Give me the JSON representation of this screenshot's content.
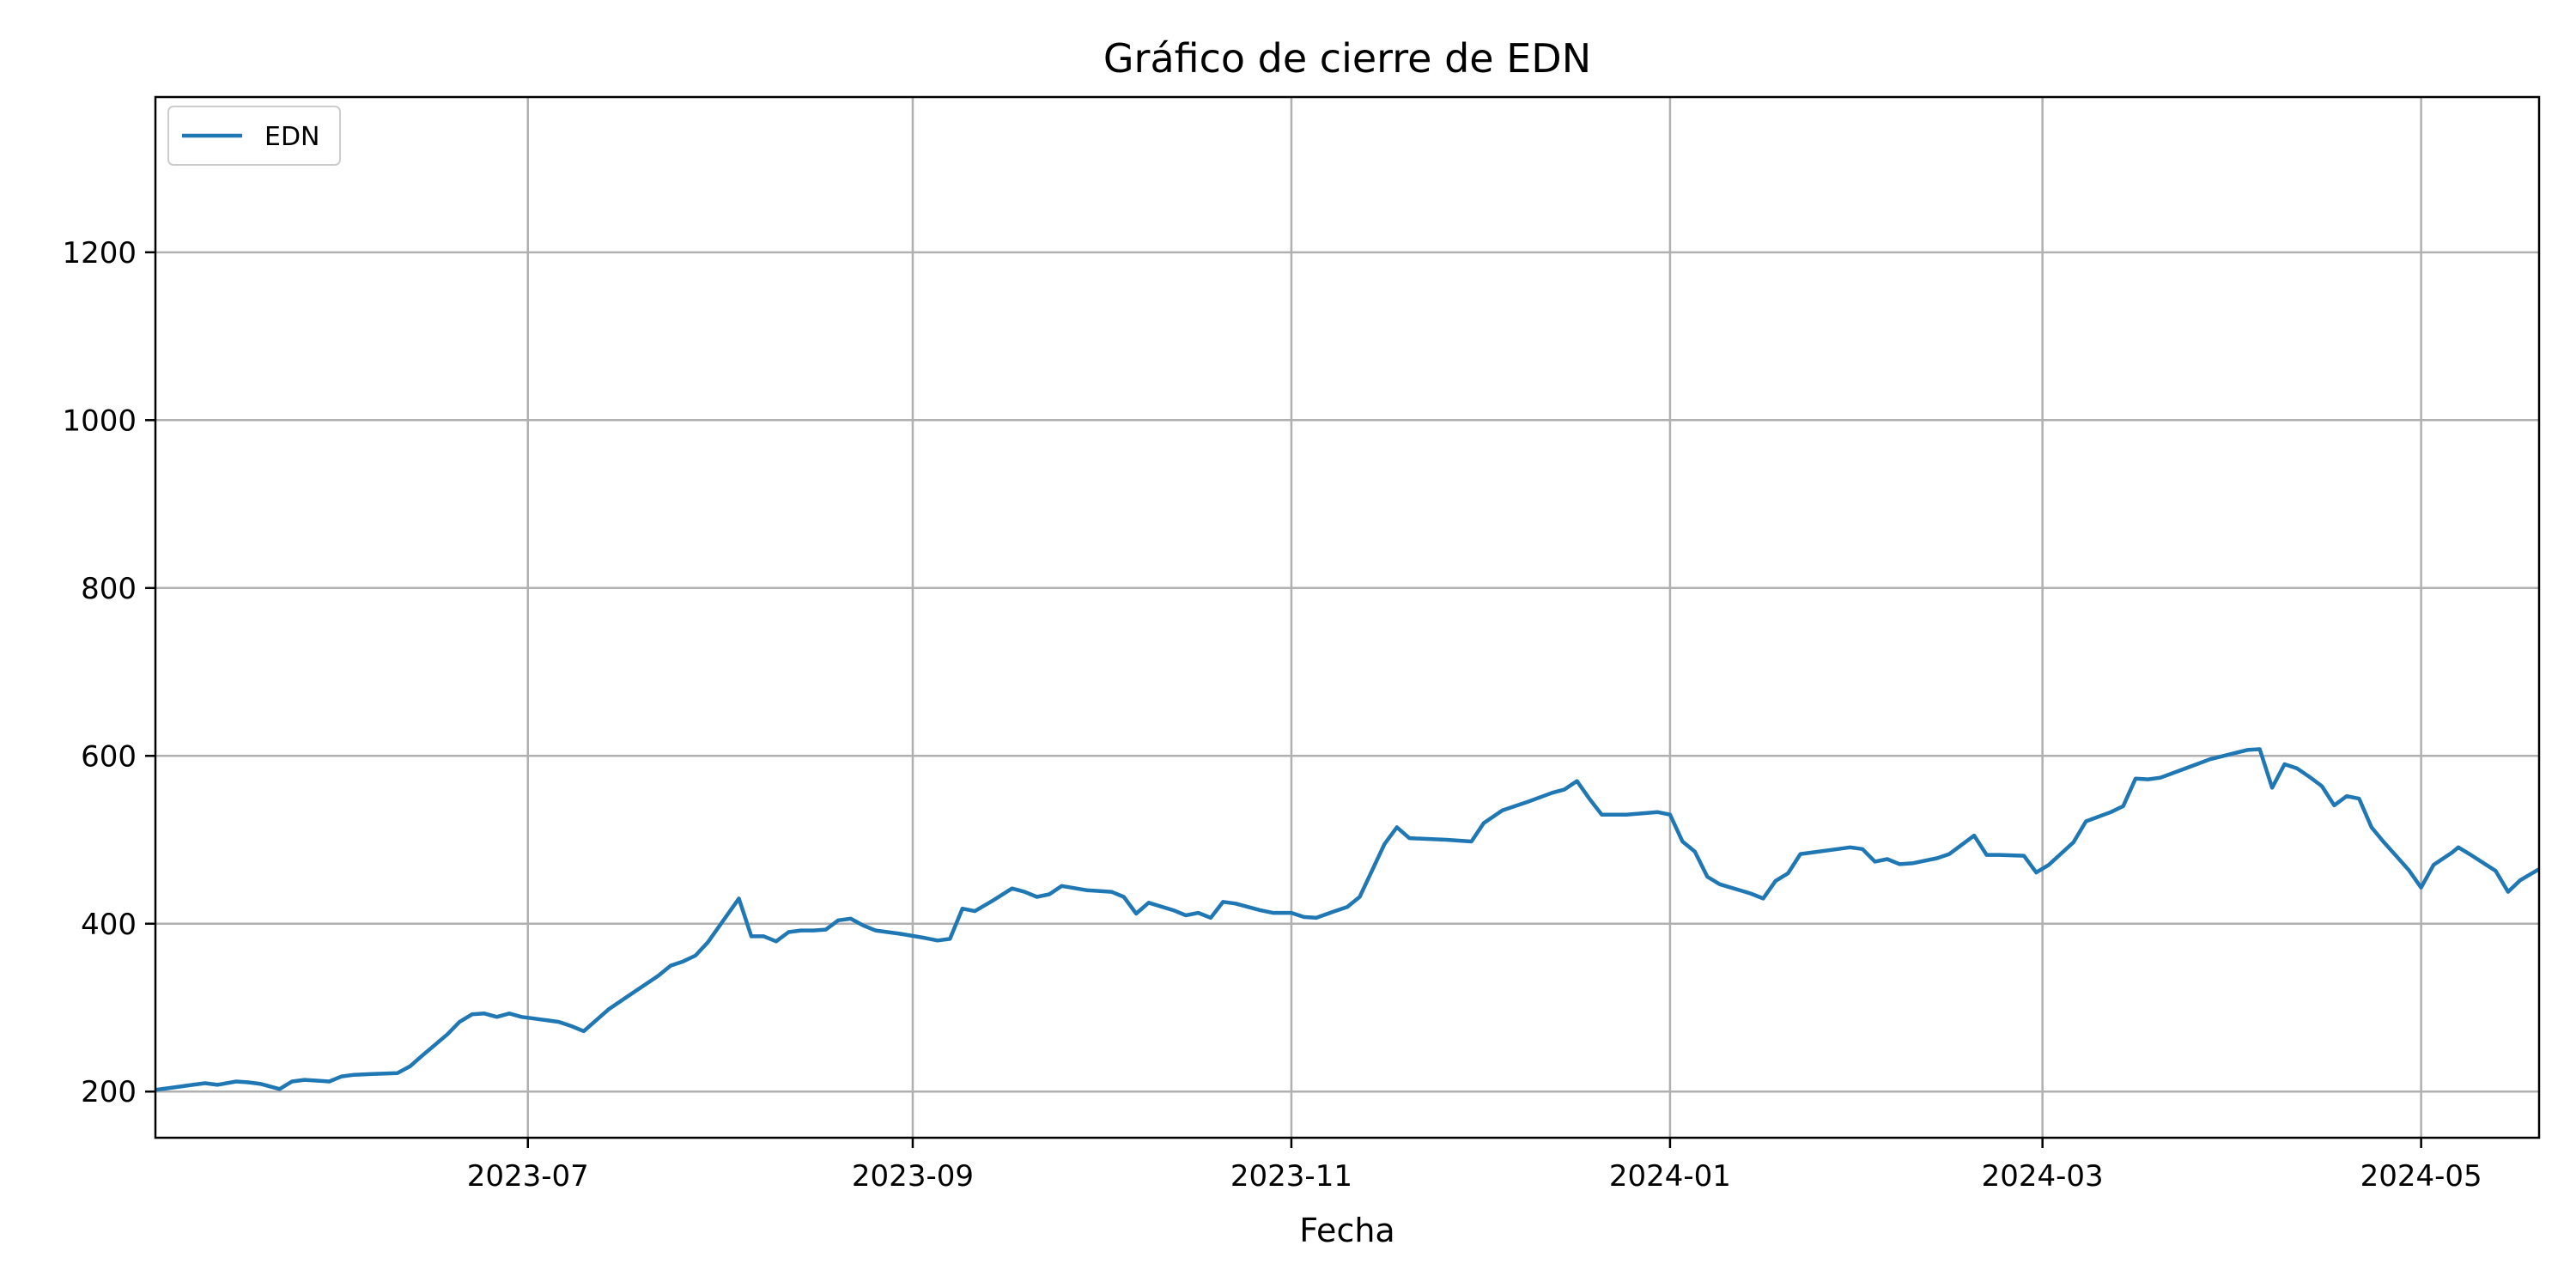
{
  "chart_data": {
    "type": "line",
    "title": "Gráfico de cierre de EDN",
    "xlabel": "Fecha",
    "ylabel": "",
    "x_ticks": [
      "2023-07",
      "2023-09",
      "2023-11",
      "2024-01",
      "2024-03",
      "2024-05"
    ],
    "y_ticks": [
      200,
      400,
      600,
      800,
      1000,
      1200
    ],
    "xlim": [
      "2023-05-02",
      "2024-05-20"
    ],
    "ylim": [
      145,
      1385
    ],
    "grid": true,
    "legend": "top-left",
    "colors": {
      "series": "#1f77b4",
      "grid": "#b0b0b0",
      "axes": "#000000"
    },
    "series": [
      {
        "name": "EDN",
        "points": [
          [
            "2023-05-02",
            202
          ],
          [
            "2023-05-05",
            205
          ],
          [
            "2023-05-08",
            208
          ],
          [
            "2023-05-10",
            210
          ],
          [
            "2023-05-12",
            208
          ],
          [
            "2023-05-15",
            212
          ],
          [
            "2023-05-17",
            211
          ],
          [
            "2023-05-19",
            209
          ],
          [
            "2023-05-22",
            203
          ],
          [
            "2023-05-24",
            212
          ],
          [
            "2023-05-26",
            214
          ],
          [
            "2023-05-28",
            213
          ],
          [
            "2023-05-30",
            212
          ],
          [
            "2023-06-01",
            218
          ],
          [
            "2023-06-03",
            220
          ],
          [
            "2023-06-06",
            221
          ],
          [
            "2023-06-10",
            222
          ],
          [
            "2023-06-12",
            230
          ],
          [
            "2023-06-14",
            243
          ],
          [
            "2023-06-18",
            268
          ],
          [
            "2023-06-20",
            283
          ],
          [
            "2023-06-22",
            292
          ],
          [
            "2023-06-24",
            293
          ],
          [
            "2023-06-26",
            289
          ],
          [
            "2023-06-28",
            293
          ],
          [
            "2023-06-30",
            289
          ],
          [
            "2023-07-02",
            287
          ],
          [
            "2023-07-06",
            283
          ],
          [
            "2023-07-08",
            278
          ],
          [
            "2023-07-10",
            272
          ],
          [
            "2023-07-12",
            285
          ],
          [
            "2023-07-14",
            298
          ],
          [
            "2023-07-18",
            318
          ],
          [
            "2023-07-22",
            338
          ],
          [
            "2023-07-24",
            350
          ],
          [
            "2023-07-26",
            355
          ],
          [
            "2023-07-28",
            362
          ],
          [
            "2023-07-30",
            378
          ],
          [
            "2023-08-04",
            430
          ],
          [
            "2023-08-06",
            385
          ],
          [
            "2023-08-08",
            385
          ],
          [
            "2023-08-10",
            379
          ],
          [
            "2023-08-12",
            390
          ],
          [
            "2023-08-14",
            392
          ],
          [
            "2023-08-16",
            392
          ],
          [
            "2023-08-18",
            393
          ],
          [
            "2023-08-20",
            404
          ],
          [
            "2023-08-22",
            406
          ],
          [
            "2023-08-24",
            398
          ],
          [
            "2023-08-26",
            392
          ],
          [
            "2023-08-30",
            388
          ],
          [
            "2023-09-03",
            383
          ],
          [
            "2023-09-05",
            380
          ],
          [
            "2023-09-07",
            382
          ],
          [
            "2023-09-09",
            418
          ],
          [
            "2023-09-11",
            415
          ],
          [
            "2023-09-14",
            428
          ],
          [
            "2023-09-17",
            442
          ],
          [
            "2023-09-19",
            438
          ],
          [
            "2023-09-21",
            432
          ],
          [
            "2023-09-23",
            435
          ],
          [
            "2023-09-25",
            445
          ],
          [
            "2023-09-29",
            440
          ],
          [
            "2023-10-03",
            438
          ],
          [
            "2023-10-05",
            432
          ],
          [
            "2023-10-07",
            412
          ],
          [
            "2023-10-09",
            425
          ],
          [
            "2023-10-13",
            416
          ],
          [
            "2023-10-15",
            410
          ],
          [
            "2023-10-17",
            413
          ],
          [
            "2023-10-19",
            407
          ],
          [
            "2023-10-21",
            426
          ],
          [
            "2023-10-23",
            424
          ],
          [
            "2023-10-27",
            416
          ],
          [
            "2023-10-29",
            413
          ],
          [
            "2023-11-01",
            413
          ],
          [
            "2023-11-03",
            408
          ],
          [
            "2023-11-05",
            407
          ],
          [
            "2023-11-08",
            415
          ],
          [
            "2023-11-10",
            420
          ],
          [
            "2023-11-12",
            432
          ],
          [
            "2023-11-16",
            495
          ],
          [
            "2023-11-18",
            515
          ],
          [
            "2023-11-20",
            502
          ],
          [
            "2023-11-26",
            500
          ],
          [
            "2023-11-30",
            498
          ],
          [
            "2023-12-02",
            520
          ],
          [
            "2023-12-05",
            535
          ],
          [
            "2023-12-09",
            545
          ],
          [
            "2023-12-13",
            556
          ],
          [
            "2023-12-15",
            560
          ],
          [
            "2023-12-17",
            570
          ],
          [
            "2023-12-19",
            549
          ],
          [
            "2023-12-21",
            530
          ],
          [
            "2023-12-25",
            530
          ],
          [
            "2023-12-30",
            533
          ],
          [
            "2024-01-01",
            530
          ],
          [
            "2024-01-03",
            498
          ],
          [
            "2024-01-05",
            486
          ],
          [
            "2024-01-07",
            456
          ],
          [
            "2024-01-09",
            447
          ],
          [
            "2024-01-14",
            436
          ],
          [
            "2024-01-16",
            430
          ],
          [
            "2024-01-18",
            451
          ],
          [
            "2024-01-20",
            460
          ],
          [
            "2024-01-22",
            483
          ],
          [
            "2024-01-28",
            489
          ],
          [
            "2024-01-30",
            491
          ],
          [
            "2024-02-01",
            489
          ],
          [
            "2024-02-03",
            474
          ],
          [
            "2024-02-05",
            477
          ],
          [
            "2024-02-07",
            471
          ],
          [
            "2024-02-09",
            472
          ],
          [
            "2024-02-13",
            478
          ],
          [
            "2024-02-15",
            483
          ],
          [
            "2024-02-19",
            505
          ],
          [
            "2024-02-21",
            482
          ],
          [
            "2024-02-23",
            482
          ],
          [
            "2024-02-27",
            481
          ],
          [
            "2024-02-29",
            461
          ],
          [
            "2024-03-02",
            470
          ],
          [
            "2024-03-06",
            497
          ],
          [
            "2024-03-08",
            522
          ],
          [
            "2024-03-12",
            533
          ],
          [
            "2024-03-14",
            540
          ],
          [
            "2024-03-16",
            573
          ],
          [
            "2024-03-18",
            572
          ],
          [
            "2024-03-20",
            574
          ],
          [
            "2024-03-28",
            596
          ],
          [
            "2024-04-03",
            607
          ],
          [
            "2024-04-05",
            608
          ],
          [
            "2024-04-07",
            562
          ],
          [
            "2024-04-09",
            590
          ],
          [
            "2024-04-11",
            585
          ],
          [
            "2024-04-13",
            575
          ],
          [
            "2024-04-15",
            564
          ],
          [
            "2024-04-17",
            541
          ],
          [
            "2024-04-19",
            552
          ],
          [
            "2024-04-21",
            549
          ],
          [
            "2024-04-23",
            515
          ],
          [
            "2024-04-25",
            497
          ],
          [
            "2024-04-29",
            464
          ],
          [
            "2024-05-01",
            443
          ],
          [
            "2024-05-03",
            470
          ],
          [
            "2024-05-06",
            485
          ],
          [
            "2024-05-07",
            491
          ],
          [
            "2024-05-09",
            482
          ],
          [
            "2024-05-13",
            463
          ],
          [
            "2024-05-15",
            438
          ],
          [
            "2024-05-17",
            452
          ],
          [
            "2024-05-20",
            465
          ]
        ]
      }
    ]
  }
}
